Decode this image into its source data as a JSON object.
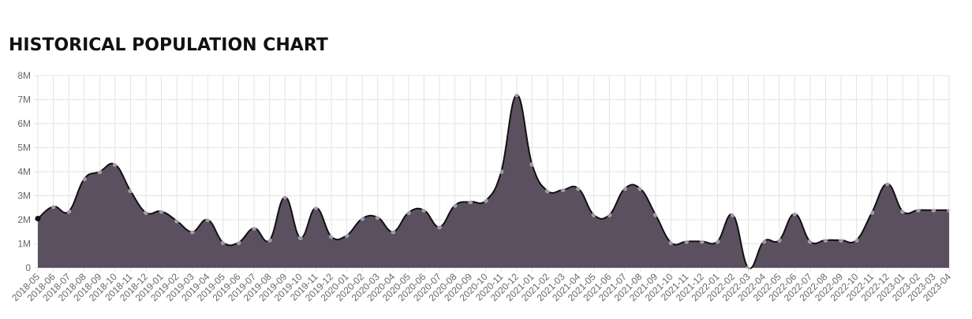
{
  "chart_data": {
    "type": "area",
    "title": "HISTORICAL POPULATION CHART",
    "categories": [
      "2018-05",
      "2018-06",
      "2018-07",
      "2018-08",
      "2018-09",
      "2018-10",
      "2018-11",
      "2018-12",
      "2019-01",
      "2019-02",
      "2019-03",
      "2019-04",
      "2019-05",
      "2019-06",
      "2019-07",
      "2019-08",
      "2019-09",
      "2019-10",
      "2019-11",
      "2019-12",
      "2020-01",
      "2020-02",
      "2020-03",
      "2020-04",
      "2020-05",
      "2020-06",
      "2020-07",
      "2020-08",
      "2020-09",
      "2020-10",
      "2020-11",
      "2020-12",
      "2021-01",
      "2021-02",
      "2021-03",
      "2021-04",
      "2021-05",
      "2021-06",
      "2021-07",
      "2021-08",
      "2021-09",
      "2021-10",
      "2021-11",
      "2021-12",
      "2022-01",
      "2022-02",
      "2022-03",
      "2022-04",
      "2022-05",
      "2022-06",
      "2022-07",
      "2022-08",
      "2022-09",
      "2022-10",
      "2022-11",
      "2022-12",
      "2023-01",
      "2023-02",
      "2023-03",
      "2023-04"
    ],
    "values": [
      2050000,
      2550000,
      2350000,
      3700000,
      4000000,
      4300000,
      3200000,
      2300000,
      2350000,
      1950000,
      1500000,
      2000000,
      1050000,
      1050000,
      1650000,
      1150000,
      2950000,
      1250000,
      2500000,
      1300000,
      1350000,
      2050000,
      2100000,
      1500000,
      2300000,
      2400000,
      1700000,
      2600000,
      2750000,
      2800000,
      4000000,
      7200000,
      4300000,
      3200000,
      3250000,
      3300000,
      2200000,
      2200000,
      3300000,
      3300000,
      2200000,
      1050000,
      1100000,
      1100000,
      1100000,
      2200000,
      0,
      1100000,
      1150000,
      2250000,
      1100000,
      1150000,
      1150000,
      1150000,
      2300000,
      3500000,
      2350000,
      2400000,
      2400000,
      2400000
    ],
    "color": "#5a5060",
    "line_color": "#111111",
    "ylim": [
      0,
      8000000
    ],
    "yticks": [
      0,
      {
        "value": 1000000,
        "label": "1M"
      },
      {
        "value": 2000000,
        "label": "2M"
      },
      {
        "value": 3000000,
        "label": "3M"
      },
      {
        "value": 4000000,
        "label": "4M"
      },
      {
        "value": 5000000,
        "label": "5M"
      },
      {
        "value": 6000000,
        "label": "6M"
      },
      {
        "value": 7000000,
        "label": "7M"
      },
      {
        "value": 8000000,
        "label": "8M"
      }
    ],
    "grid": true
  }
}
